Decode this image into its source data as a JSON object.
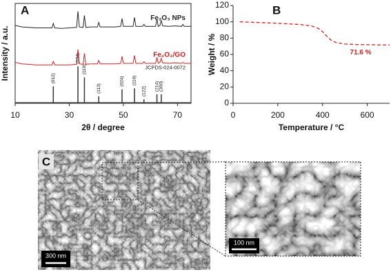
{
  "chart_data": [
    {
      "type": "line",
      "panel": "A",
      "xlabel": "2θ / degree",
      "ylabel": "Intensity / a.u.",
      "xlim": [
        10,
        75
      ],
      "xticks": [
        10,
        30,
        50,
        70
      ],
      "ylim": [
        0,
        100
      ],
      "frame": true,
      "x": [
        10,
        12.5,
        15,
        17.5,
        20,
        22.5,
        23.6,
        24.1,
        24.6,
        27,
        30,
        32.7,
        33.2,
        33.7,
        35.1,
        35.6,
        36.1,
        38,
        40.4,
        40.9,
        41.4,
        44,
        47,
        49,
        49.5,
        50,
        52,
        53.6,
        54.1,
        54.6,
        57.1,
        57.6,
        58.1,
        60,
        61.9,
        62.4,
        62.9,
        63.5,
        64,
        64.5,
        67,
        69,
        71.5,
        72,
        72.5,
        75
      ],
      "series": [
        {
          "name": "Fe₂O₃ NPs",
          "color": "#222222",
          "values": [
            78,
            76.5,
            76,
            75.5,
            75.5,
            75.5,
            75.5,
            80,
            75.5,
            75,
            75.5,
            76,
            92,
            76.5,
            76,
            88,
            76,
            76.5,
            76.5,
            81,
            76.5,
            76.5,
            76.5,
            77,
            85,
            77,
            77,
            77,
            86,
            77,
            77,
            79,
            77,
            77,
            77,
            84,
            77,
            78,
            83,
            77.5,
            77,
            77.5,
            77,
            79,
            77,
            77
          ]
        },
        {
          "name": "Fe₂O₃/GO",
          "color": "#cc2020",
          "values": [
            41,
            39.5,
            39,
            38.5,
            38.5,
            38.5,
            38.5,
            42,
            38.5,
            38.5,
            38.5,
            39,
            54,
            39.5,
            39,
            50,
            39,
            39.5,
            39.5,
            43,
            39.5,
            39.5,
            39.5,
            40,
            47,
            40,
            40,
            40,
            48,
            40,
            40,
            41.5,
            40,
            40,
            40,
            46,
            40,
            41,
            45,
            40.5,
            40,
            40.5,
            40,
            41,
            40,
            40
          ]
        }
      ],
      "reference": {
        "name": "JCPDS-024-0072",
        "color": "#333333",
        "x": [
          24.1,
          33.2,
          35.6,
          40.9,
          49.5,
          54.1,
          57.6,
          62.4,
          64.0
        ],
        "values": [
          17,
          37,
          26,
          7,
          14,
          15,
          4,
          9,
          9
        ],
        "labels": [
          "(012)",
          "(104)",
          "(110)",
          "(113)",
          "(024)",
          "(116)",
          "(122)",
          "(214)",
          "(300)"
        ]
      }
    },
    {
      "type": "line",
      "panel": "B",
      "xlabel": "Temperature / °C",
      "ylabel": "Weight / %",
      "xlim": [
        0,
        700
      ],
      "xticks": [
        0,
        200,
        400,
        600
      ],
      "ylim": [
        0,
        120
      ],
      "yticks": [
        0,
        20,
        40,
        60,
        80,
        100,
        120
      ],
      "frame": false,
      "x": [
        30,
        100,
        200,
        300,
        350,
        380,
        400,
        420,
        440,
        460,
        500,
        550,
        600,
        650,
        700
      ],
      "series": [
        {
          "color": "#cc2020",
          "dashed": true,
          "values": [
            100,
            99.3,
            98.2,
            96.7,
            95,
            92,
            88,
            82,
            77,
            74.5,
            72.8,
            72.2,
            71.9,
            71.7,
            71.6
          ]
        }
      ],
      "annotation": "71.6 %"
    }
  ],
  "panel_c": {
    "label": "C",
    "scale_bar": "300 nm",
    "inset_scale_bar": "100 nm"
  }
}
